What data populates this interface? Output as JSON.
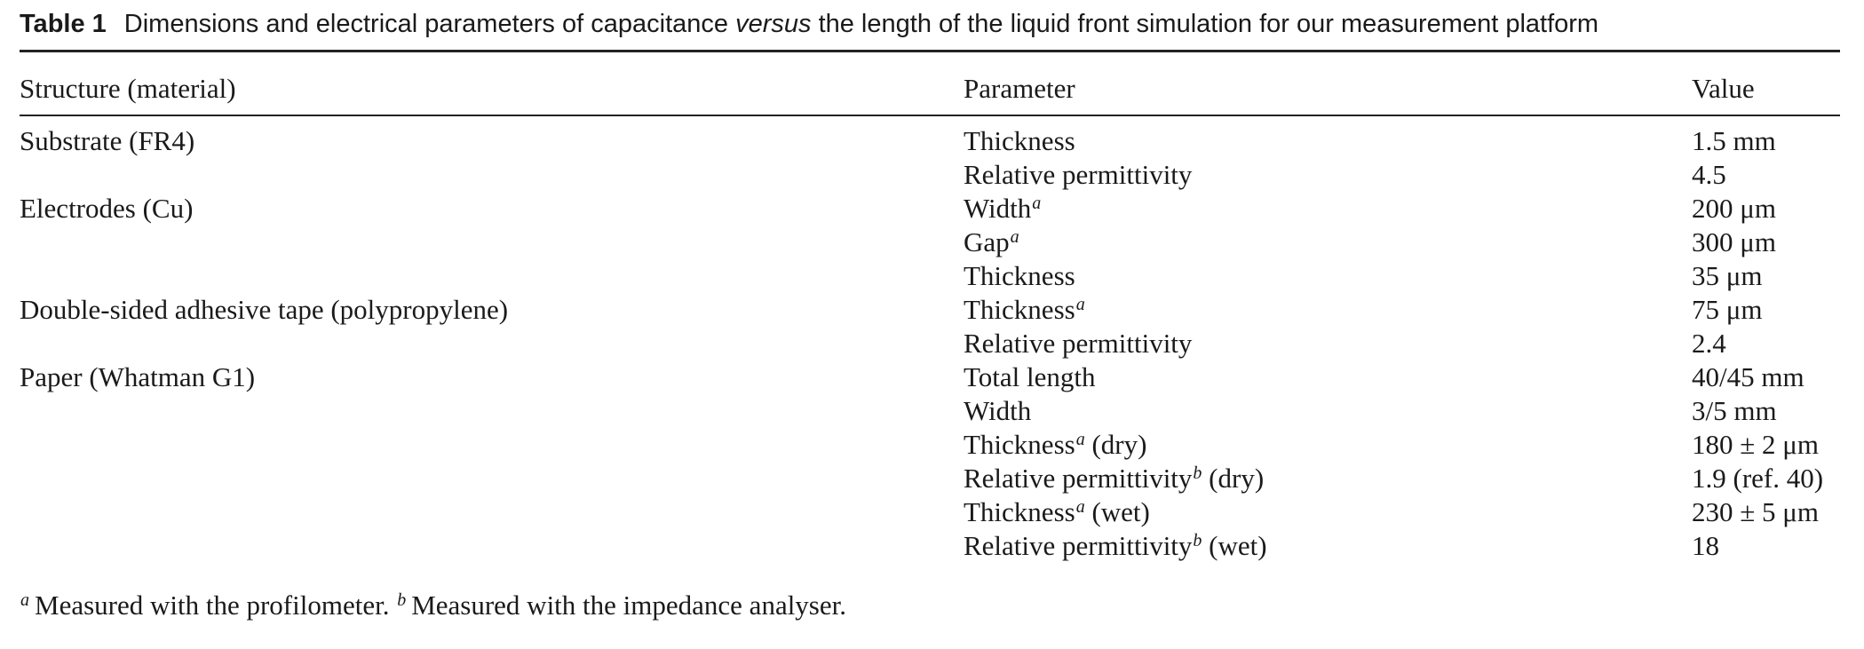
{
  "caption": {
    "number": "Table 1",
    "text_before": "Dimensions and electrical parameters of capacitance",
    "text_italic": "versus",
    "text_after": "the length of the liquid front simulation for our measurement platform"
  },
  "headers": {
    "structure": "Structure (material)",
    "parameter": "Parameter",
    "value": "Value"
  },
  "rows": [
    {
      "structure": "Substrate (FR4)",
      "param": "Thickness",
      "sup": "",
      "suffix": "",
      "value": "1.5 mm"
    },
    {
      "structure": "",
      "param": "Relative permittivity",
      "sup": "",
      "suffix": "",
      "value": "4.5"
    },
    {
      "structure": "Electrodes (Cu)",
      "param": "Width",
      "sup": "a",
      "suffix": "",
      "value": "200 μm"
    },
    {
      "structure": "",
      "param": "Gap",
      "sup": "a",
      "suffix": "",
      "value": "300 μm"
    },
    {
      "structure": "",
      "param": "Thickness",
      "sup": "",
      "suffix": "",
      "value": "35 μm"
    },
    {
      "structure": "Double-sided adhesive tape (polypropylene)",
      "param": "Thickness",
      "sup": "a",
      "suffix": "",
      "value": "75 μm"
    },
    {
      "structure": "",
      "param": "Relative permittivity",
      "sup": "",
      "suffix": "",
      "value": "2.4"
    },
    {
      "structure": "Paper (Whatman G1)",
      "param": "Total length",
      "sup": "",
      "suffix": "",
      "value": "40/45 mm"
    },
    {
      "structure": "",
      "param": "Width",
      "sup": "",
      "suffix": "",
      "value": "3/5 mm"
    },
    {
      "structure": "",
      "param": "Thickness",
      "sup": "a",
      "suffix": " (dry)",
      "value": "180 ± 2 μm"
    },
    {
      "structure": "",
      "param": "Relative permittivity",
      "sup": "b",
      "suffix": " (dry)",
      "value": "1.9 (ref. 40)"
    },
    {
      "structure": "",
      "param": "Thickness",
      "sup": "a",
      "suffix": " (wet)",
      "value": "230 ± 5 μm"
    },
    {
      "structure": "",
      "param": "Relative permittivity",
      "sup": "b",
      "suffix": " (wet)",
      "value": "18"
    }
  ],
  "footnotes": [
    {
      "mark": "a",
      "text": "Measured with the profilometer."
    },
    {
      "mark": "b",
      "text": "Measured with the impedance analyser."
    }
  ]
}
